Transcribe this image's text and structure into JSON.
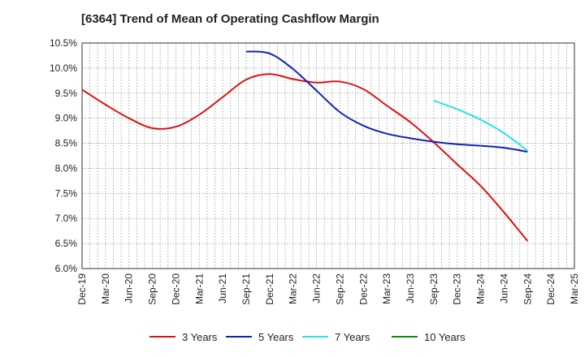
{
  "chart_data": {
    "type": "line",
    "title": "[6364]  Trend of Mean of Operating Cashflow Margin",
    "xlabel": "",
    "ylabel": "",
    "ylim": [
      6.0,
      10.5
    ],
    "y_ticks": [
      "6.0%",
      "6.5%",
      "7.0%",
      "7.5%",
      "8.0%",
      "8.5%",
      "9.0%",
      "9.5%",
      "10.0%",
      "10.5%"
    ],
    "x_ticks": [
      "Dec-19",
      "Mar-20",
      "Jun-20",
      "Sep-20",
      "Dec-20",
      "Mar-21",
      "Jun-21",
      "Sep-21",
      "Dec-21",
      "Mar-22",
      "Jun-22",
      "Sep-22",
      "Dec-22",
      "Mar-23",
      "Jun-23",
      "Sep-23",
      "Dec-23",
      "Mar-24",
      "Jun-24",
      "Sep-24",
      "Dec-24",
      "Mar-25"
    ],
    "grid": true,
    "series": [
      {
        "name": "3 Years",
        "color": "#dd1111",
        "points": [
          [
            "Dec-19",
            9.57
          ],
          [
            "Mar-20",
            9.27
          ],
          [
            "Jun-20",
            9.0
          ],
          [
            "Sep-20",
            8.8
          ],
          [
            "Dec-20",
            8.83
          ],
          [
            "Mar-21",
            9.07
          ],
          [
            "Jun-21",
            9.42
          ],
          [
            "Sep-21",
            9.77
          ],
          [
            "Dec-21",
            9.88
          ],
          [
            "Mar-22",
            9.78
          ],
          [
            "Jun-22",
            9.71
          ],
          [
            "Sep-22",
            9.73
          ],
          [
            "Dec-22",
            9.58
          ],
          [
            "Mar-23",
            9.25
          ],
          [
            "Jun-23",
            8.92
          ],
          [
            "Sep-23",
            8.52
          ],
          [
            "Dec-23",
            8.08
          ],
          [
            "Mar-24",
            7.65
          ],
          [
            "Jun-24",
            7.12
          ],
          [
            "Sep-24",
            6.55
          ]
        ]
      },
      {
        "name": "5 Years",
        "color": "#1122bb",
        "points": [
          [
            "Sep-21",
            10.33
          ],
          [
            "Dec-21",
            10.29
          ],
          [
            "Mar-22",
            9.98
          ],
          [
            "Jun-22",
            9.55
          ],
          [
            "Sep-22",
            9.12
          ],
          [
            "Dec-22",
            8.85
          ],
          [
            "Mar-23",
            8.69
          ],
          [
            "Jun-23",
            8.6
          ],
          [
            "Sep-23",
            8.53
          ],
          [
            "Dec-23",
            8.48
          ],
          [
            "Mar-24",
            8.45
          ],
          [
            "Jun-24",
            8.41
          ],
          [
            "Sep-24",
            8.33
          ]
        ]
      },
      {
        "name": "7 Years",
        "color": "#22e5e5",
        "points": [
          [
            "Sep-23",
            9.35
          ],
          [
            "Dec-23",
            9.18
          ],
          [
            "Mar-24",
            8.97
          ],
          [
            "Jun-24",
            8.7
          ],
          [
            "Sep-24",
            8.35
          ]
        ]
      },
      {
        "name": "10 Years",
        "color": "#118811",
        "points": []
      }
    ]
  }
}
